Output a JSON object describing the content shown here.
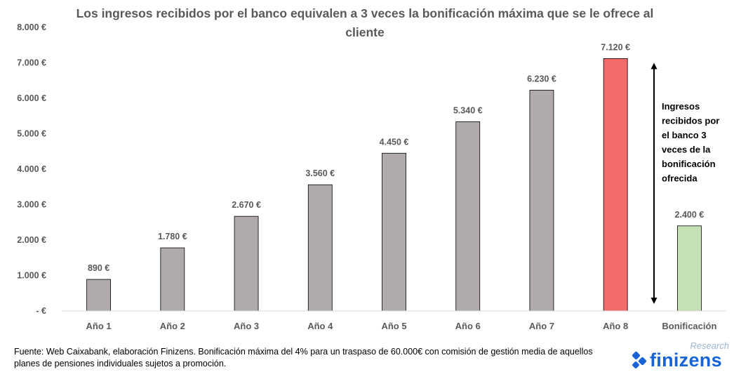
{
  "chart_data": {
    "type": "bar",
    "title": "Los ingresos recibidos por el banco equivalen a 3 veces la bonificación máxima que se le ofrece al cliente",
    "categories": [
      "Año 1",
      "Año 2",
      "Año 3",
      "Año 4",
      "Año 5",
      "Año 6",
      "Año 7",
      "Año 8",
      "Bonificación"
    ],
    "values": [
      890,
      1780,
      2670,
      3560,
      4450,
      5340,
      6230,
      7120,
      2400
    ],
    "value_labels": [
      "890 €",
      "1.780 €",
      "2.670 €",
      "3.560 €",
      "4.450 €",
      "5.340 €",
      "6.230 €",
      "7.120 €",
      "2.400 €"
    ],
    "bar_colors": [
      "#b0aaab",
      "#b0aaab",
      "#b0aaab",
      "#b0aaab",
      "#b0aaab",
      "#b0aaab",
      "#b0aaab",
      "#f26a6a",
      "#c5e0b4"
    ],
    "ylim": [
      0,
      8000
    ],
    "yticks": [
      0,
      1000,
      2000,
      3000,
      4000,
      5000,
      6000,
      7000,
      8000
    ],
    "ytick_labels": [
      "-  €",
      "1.000 €",
      "2.000 €",
      "3.000 €",
      "4.000 €",
      "5.000 €",
      "6.000 €",
      "7.000 €",
      "8.000 €"
    ],
    "grid": false,
    "annotation": {
      "text_lines": [
        "Ingresos",
        "recibidos por",
        "el banco 3",
        "veces de la",
        "bonificación",
        "ofrecida"
      ],
      "arrow_from_value": 0,
      "arrow_to_value": 7120
    }
  },
  "footnote": "Fuente: Web Caixabank, elaboración Finizens. Bonificación máxima del 4% para un traspaso de 60.000€ con comisión de gestión media de aquellos planes de pensiones individuales sujetos a promoción.",
  "brand": {
    "name": "finizens",
    "tag": "Research",
    "color": "#1863d6"
  }
}
